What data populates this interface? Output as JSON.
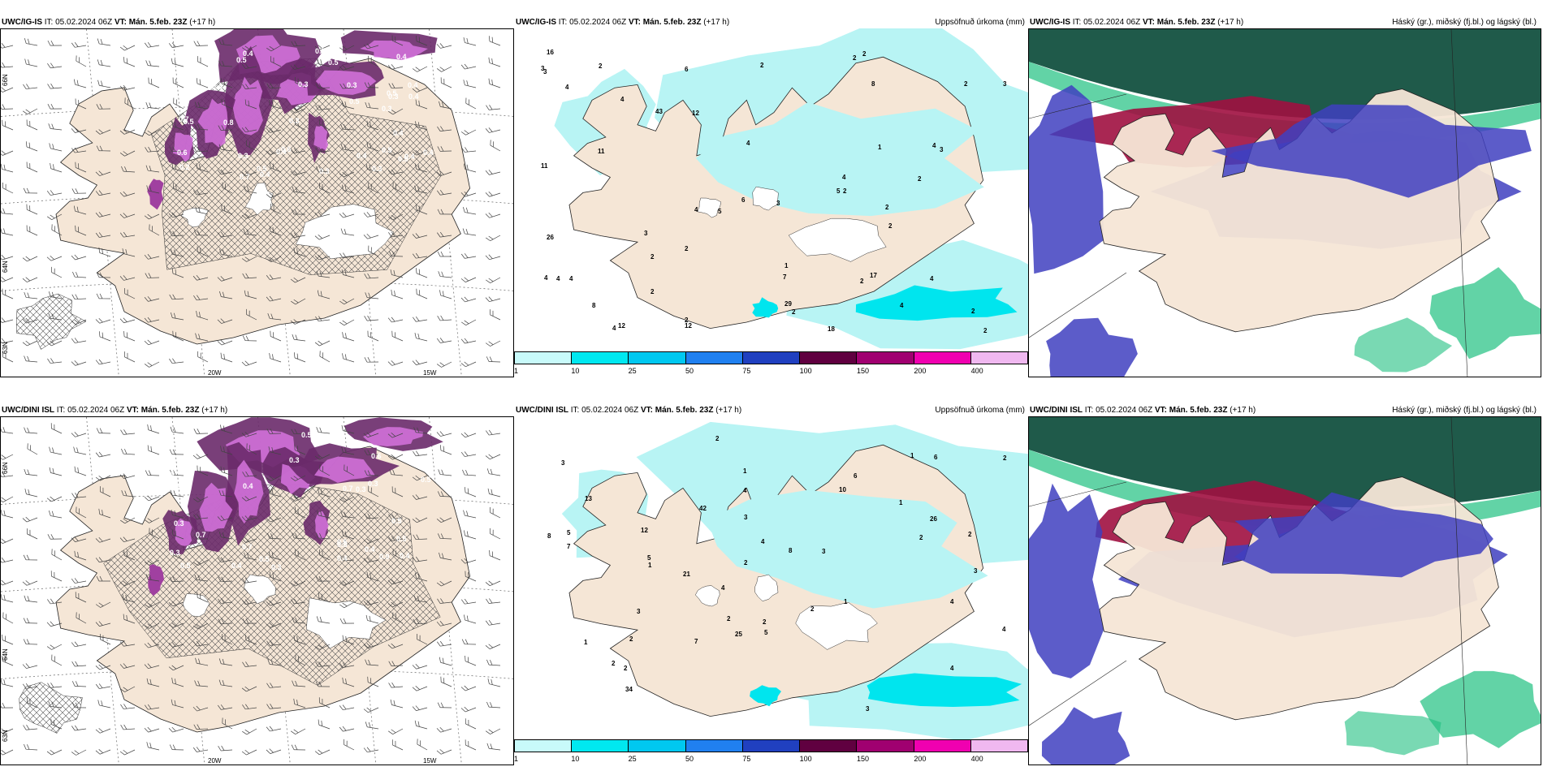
{
  "colors": {
    "land": "#f5e6d6",
    "precip_light": "#b8f4f4",
    "precip_mid": "#00e5ee",
    "purple_dark": "#6a2a6a",
    "purple_mid": "#a040a0",
    "purple_light": "#d070d8",
    "cloud_dark_green": "#1f5a4a",
    "cloud_red": "#a01040",
    "cloud_blue": "#4040c0",
    "cloud_green": "#20c080"
  },
  "rows": [
    {
      "model": "UWC/IG-IS",
      "it_label": "IT:",
      "it": "05.02.2024 06Z",
      "vt_label": "VT: Mán. 5.feb. 23Z",
      "lead": "(+17 h)"
    },
    {
      "model": "UWC/DINI ISL",
      "it_label": "IT:",
      "it": "05.02.2024 06Z",
      "vt_label": "VT: Mán. 5.feb. 23Z",
      "lead": "(+17 h)"
    }
  ],
  "precip_title": "Uppsöfnuð úrkoma (mm)",
  "cloud_title": "Háský (gr.), miðský (fj.bl.) og lágský (bl.)",
  "legend": {
    "labels": [
      "1",
      "10",
      "25",
      "50",
      "75",
      "100",
      "150",
      "200",
      "400"
    ],
    "colors": [
      "#c8fafa",
      "#00e8f0",
      "#00c8f0",
      "#2080f0",
      "#2040c0",
      "#600040",
      "#a00070",
      "#f000b0",
      "#f0b8f0"
    ]
  },
  "axes": {
    "lon_20": "20W",
    "lon_15": "15W",
    "lat_66": "66N",
    "lat_64": "64N",
    "lat_63": "63N",
    "lat_66_mid": "66N",
    "lat_64_mid": "64N"
  },
  "snow_values_top": [
    "0.5",
    "0.4",
    "0.4",
    "0.3",
    "0.2",
    "0.4",
    "0.5",
    "0.3",
    "0.4",
    "0.4",
    "0.4",
    "0.6",
    "0.3",
    "0.4",
    "0.6",
    "0.3",
    "0.5",
    "0.5",
    "0.6",
    "0.3",
    "0.7",
    "0.5",
    "0.3",
    "0.5",
    "0.5",
    "0.4",
    "0.5",
    "0.5",
    "0.3",
    "0.4",
    "0.8",
    "0.4",
    "0.7",
    "0.3",
    "0.4",
    "0.3"
  ],
  "snow_values_bottom": [
    "0.4",
    "0.2",
    "0.4",
    "0.4",
    "0.3",
    "0.5",
    "0.7",
    "0.4",
    "0.5",
    "0.7",
    "0.7",
    "0.9",
    "0.6",
    "0.4",
    "0.5",
    "0.3",
    "0.5",
    "0.5",
    "0.5",
    "0.3",
    "0.8",
    "0.3",
    "0.3",
    "0.3",
    "0.5",
    "0.4"
  ],
  "precip_values_top": [
    "2",
    "2",
    "4",
    "6",
    "4",
    "4",
    "2",
    "2",
    "4",
    "2",
    "2",
    "6",
    "7",
    "8",
    "5",
    "11",
    "12",
    "5",
    "4",
    "2",
    "3",
    "4",
    "4",
    "3",
    "3",
    "4",
    "2",
    "2",
    "2",
    "3",
    "2",
    "1",
    "3",
    "2",
    "2",
    "4",
    "8",
    "1",
    "2",
    "2",
    "2",
    "4",
    "12",
    "12",
    "17",
    "26",
    "18",
    "43",
    "29",
    "3",
    "11",
    "16",
    "4",
    "2",
    "4"
  ],
  "precip_values_bottom": [
    "2",
    "7",
    "2",
    "4",
    "5",
    "2",
    "4",
    "1",
    "2",
    "4",
    "6",
    "8",
    "10",
    "4",
    "5",
    "5",
    "2",
    "2",
    "4",
    "3",
    "2",
    "3",
    "1",
    "2",
    "3",
    "3",
    "1",
    "2",
    "1",
    "1",
    "3",
    "2",
    "4",
    "7",
    "26",
    "42",
    "25",
    "34",
    "6",
    "13",
    "21",
    "12",
    "3",
    "8",
    "2",
    "1"
  ]
}
